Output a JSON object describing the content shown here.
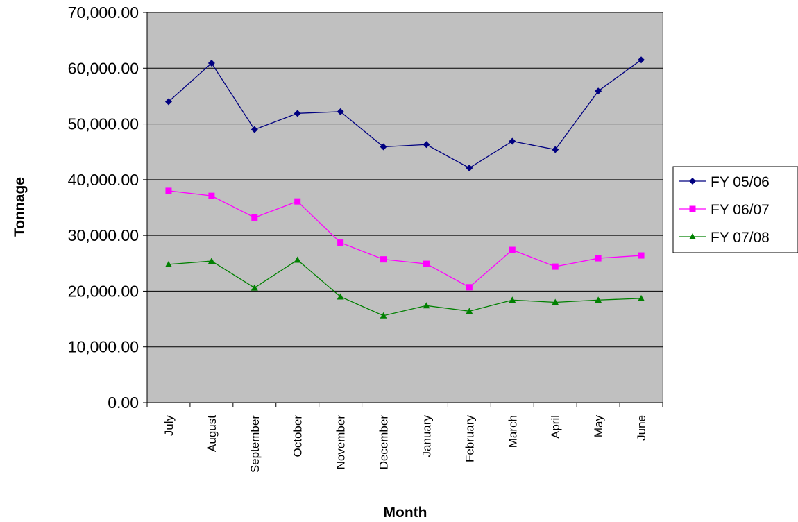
{
  "chart_data": {
    "type": "line",
    "title": "",
    "xlabel": "Month",
    "ylabel": "Tonnage",
    "categories": [
      "July",
      "August",
      "September",
      "October",
      "November",
      "December",
      "January",
      "February",
      "March",
      "April",
      "May",
      "June"
    ],
    "ylim": [
      0,
      70000
    ],
    "yticks": [
      0,
      10000,
      20000,
      30000,
      40000,
      50000,
      60000,
      70000
    ],
    "ytick_labels": [
      "0.00",
      "10,000.00",
      "20,000.00",
      "30,000.00",
      "40,000.00",
      "50,000.00",
      "60,000.00",
      "70,000.00"
    ],
    "grid": true,
    "legend_position": "right",
    "plot_background": "#c0c0c0",
    "series": [
      {
        "name": "FY 05/06",
        "color": "#000080",
        "marker": "diamond",
        "values": [
          54000,
          60900,
          49000,
          51900,
          52200,
          45900,
          46300,
          42100,
          46900,
          45400,
          55900,
          61500
        ]
      },
      {
        "name": "FY 06/07",
        "color": "#ff00ff",
        "marker": "square",
        "values": [
          38000,
          37100,
          33200,
          36100,
          28700,
          25700,
          24900,
          20700,
          27400,
          24400,
          25900,
          26400
        ]
      },
      {
        "name": "FY 07/08",
        "color": "#008000",
        "marker": "triangle",
        "values": [
          24800,
          25400,
          20600,
          25600,
          19000,
          15600,
          17400,
          16400,
          18400,
          18000,
          18400,
          18700
        ]
      }
    ]
  }
}
